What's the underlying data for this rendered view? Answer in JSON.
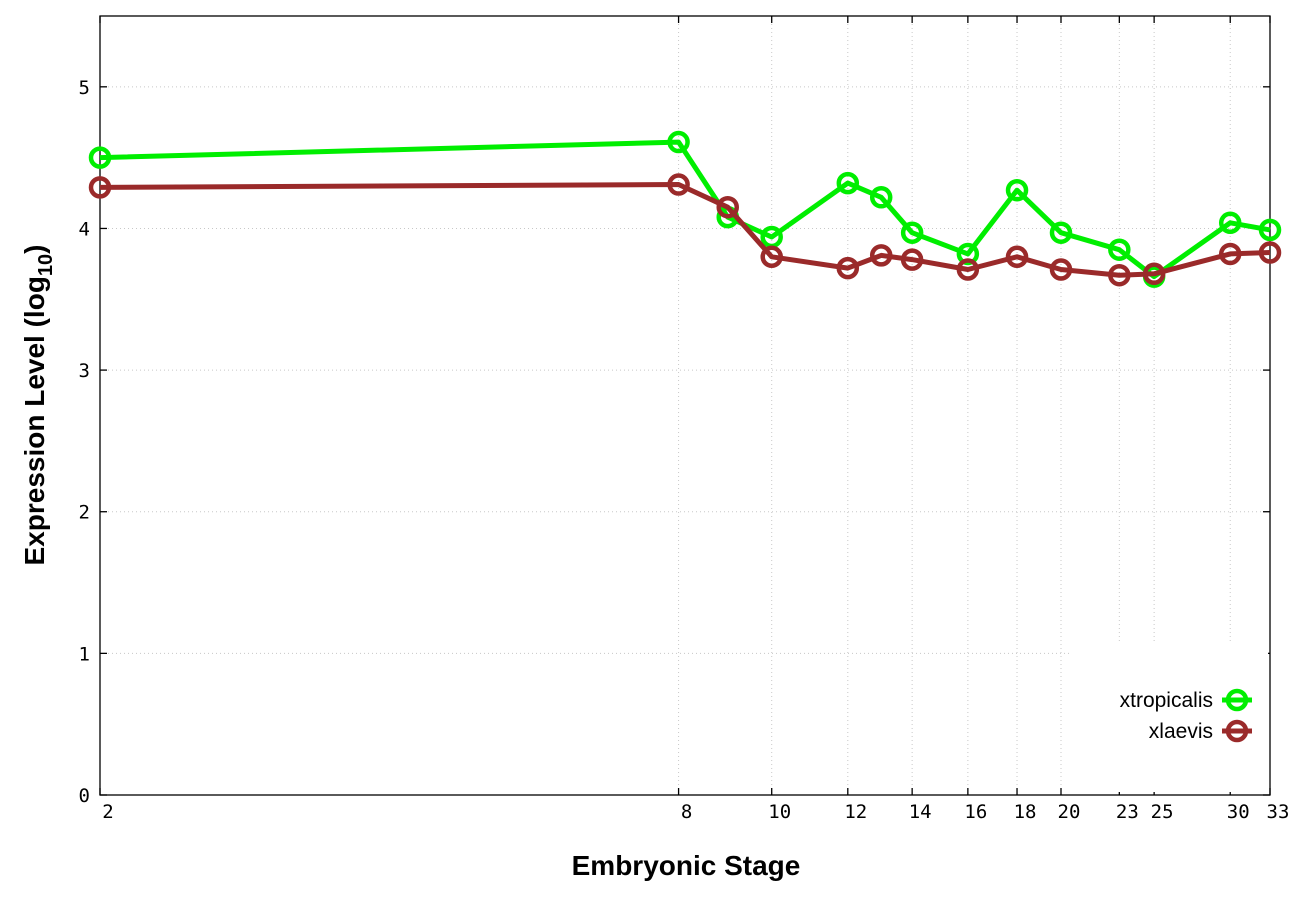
{
  "chart_data": {
    "type": "line",
    "title": "",
    "xlabel": "Embryonic Stage",
    "ylabel_main": "Expression Level (log",
    "ylabel_sub": "10",
    "ylabel_end": ")",
    "xlim": [
      2,
      33
    ],
    "ylim": [
      0,
      5.5
    ],
    "x_scale": "log",
    "x_ticks": [
      2,
      8,
      10,
      12,
      14,
      16,
      18,
      20,
      23,
      25,
      30,
      33
    ],
    "y_ticks": [
      0,
      1,
      2,
      3,
      4,
      5
    ],
    "grid": true,
    "legend_position": "bottom-right",
    "x": [
      2,
      8,
      9,
      10,
      12,
      13,
      14,
      16,
      18,
      20,
      23,
      25,
      30,
      33
    ],
    "series": [
      {
        "name": "xtropicalis",
        "color": "#00ee00",
        "values": [
          4.5,
          4.61,
          4.08,
          3.94,
          4.32,
          4.22,
          3.97,
          3.82,
          4.27,
          3.97,
          3.85,
          3.66,
          4.04,
          3.99
        ]
      },
      {
        "name": "xlaevis",
        "color": "#9a2a2a",
        "values": [
          4.29,
          4.31,
          4.15,
          3.8,
          3.72,
          3.81,
          3.78,
          3.71,
          3.8,
          3.71,
          3.67,
          3.68,
          3.82,
          3.83
        ]
      }
    ]
  }
}
